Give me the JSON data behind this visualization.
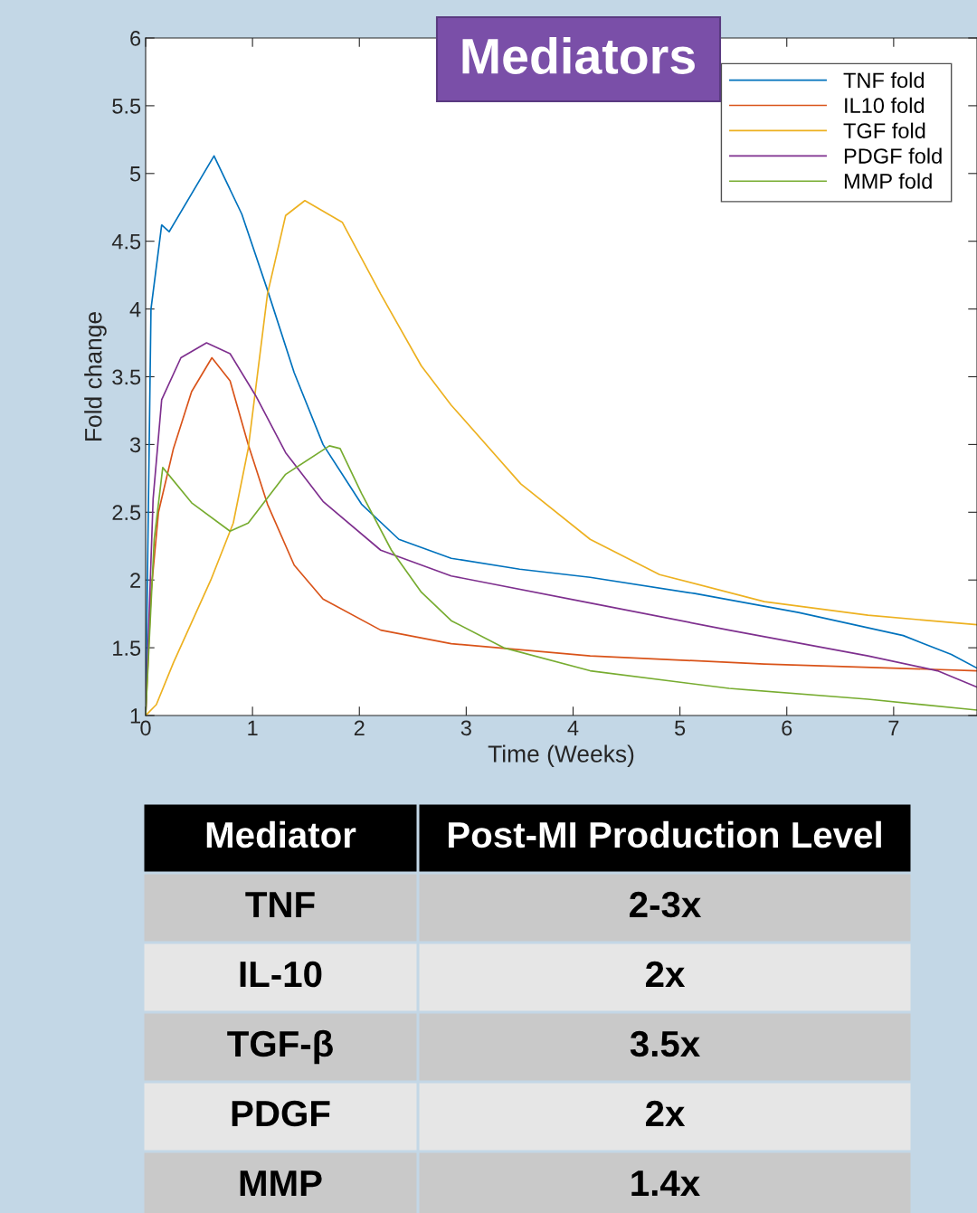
{
  "chart_data": {
    "type": "line",
    "title": "Mediators",
    "xlabel": "Time (Weeks)",
    "ylabel": "Fold change",
    "xlim": [
      0,
      7.78
    ],
    "ylim": [
      1,
      6
    ],
    "xticks": [
      0,
      1,
      2,
      3,
      4,
      5,
      6,
      7
    ],
    "yticks": [
      1,
      1.5,
      2,
      2.5,
      3,
      3.5,
      4,
      4.5,
      5,
      5.5,
      6
    ],
    "grid": false,
    "legend": "top right",
    "marker": "none",
    "line_style": "solid",
    "series": [
      {
        "name": "TNF fold",
        "color": "#0072bd",
        "x": [
          0,
          0.05,
          0.15,
          0.22,
          0.64,
          0.9,
          1.14,
          1.39,
          1.66,
          2.02,
          2.37,
          2.86,
          3.5,
          4.16,
          5.14,
          6.11,
          7.09,
          7.54,
          7.78
        ],
        "values": [
          1,
          4.0,
          4.62,
          4.57,
          5.13,
          4.7,
          4.14,
          3.53,
          3.0,
          2.56,
          2.3,
          2.16,
          2.08,
          2.02,
          1.9,
          1.76,
          1.59,
          1.45,
          1.35
        ]
      },
      {
        "name": "IL10 fold",
        "color": "#d95319",
        "x": [
          0,
          0.05,
          0.12,
          0.26,
          0.43,
          0.62,
          0.79,
          0.96,
          1.14,
          1.39,
          1.66,
          2.2,
          2.86,
          4.16,
          5.79,
          7.78
        ],
        "values": [
          1,
          1.9,
          2.5,
          2.97,
          3.39,
          3.64,
          3.47,
          3.0,
          2.56,
          2.11,
          1.86,
          1.63,
          1.53,
          1.44,
          1.38,
          1.33
        ]
      },
      {
        "name": "TGF fold",
        "color": "#edb120",
        "x": [
          0,
          0.1,
          0.26,
          0.61,
          0.82,
          0.96,
          1.14,
          1.31,
          1.49,
          1.84,
          2.2,
          2.58,
          2.86,
          3.51,
          4.16,
          4.81,
          5.79,
          6.76,
          7.78
        ],
        "values": [
          1,
          1.08,
          1.39,
          2.0,
          2.42,
          2.97,
          4.11,
          4.69,
          4.8,
          4.64,
          4.11,
          3.58,
          3.29,
          2.71,
          2.3,
          2.04,
          1.84,
          1.74,
          1.67
        ]
      },
      {
        "name": "PDGF fold",
        "color": "#7e2f8e",
        "x": [
          0,
          0.07,
          0.15,
          0.33,
          0.57,
          0.79,
          1.03,
          1.31,
          1.66,
          2.2,
          2.86,
          4.16,
          5.46,
          6.76,
          7.41,
          7.78
        ],
        "values": [
          1,
          2.6,
          3.33,
          3.64,
          3.75,
          3.67,
          3.36,
          2.94,
          2.58,
          2.22,
          2.03,
          1.83,
          1.63,
          1.44,
          1.33,
          1.21
        ]
      },
      {
        "name": "MMP fold",
        "color": "#77ac30",
        "x": [
          0,
          0.08,
          0.16,
          0.43,
          0.79,
          0.96,
          1.31,
          1.72,
          1.82,
          2.02,
          2.3,
          2.58,
          2.86,
          3.35,
          4.16,
          5.46,
          6.76,
          7.78
        ],
        "values": [
          1,
          2.3,
          2.83,
          2.57,
          2.36,
          2.42,
          2.78,
          2.99,
          2.97,
          2.64,
          2.22,
          1.91,
          1.7,
          1.5,
          1.33,
          1.2,
          1.12,
          1.04
        ]
      }
    ],
    "annotations": [
      "Mediator",
      "Post-MI Production Level",
      "TNF",
      "2-3x",
      "IL-10",
      "2x",
      "TGF-β",
      "3.5x",
      "PDGF",
      "2x",
      "MMP",
      "1.4x"
    ]
  }
}
